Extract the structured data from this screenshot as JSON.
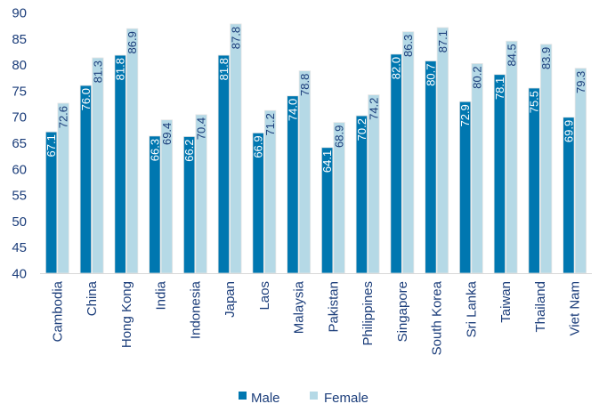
{
  "chart_data": {
    "type": "bar",
    "title": "",
    "xlabel": "",
    "ylabel": "",
    "ylim": [
      40,
      90
    ],
    "yticks": [
      40,
      45,
      50,
      55,
      60,
      65,
      70,
      75,
      80,
      85,
      90
    ],
    "grid": false,
    "legend_position": "bottom",
    "categories": [
      "Cambodia",
      "China",
      "Hong Kong",
      "India",
      "Indonesia",
      "Japan",
      "Laos",
      "Malaysia",
      "Pakistan",
      "Philippines",
      "Singapore",
      "South Korea",
      "Sri Lanka",
      "Taiwan",
      "Thailand",
      "Viet Nam"
    ],
    "series": [
      {
        "name": "Male",
        "color": "#0077b0",
        "values": [
          67.1,
          76.0,
          81.8,
          66.3,
          66.2,
          81.8,
          66.9,
          74.0,
          64.1,
          70.2,
          82.0,
          80.7,
          72.9,
          78.1,
          75.5,
          69.9
        ]
      },
      {
        "name": "Female",
        "color": "#b5d9e6",
        "values": [
          72.6,
          81.3,
          86.9,
          69.4,
          70.4,
          87.8,
          71.2,
          78.8,
          68.9,
          74.2,
          86.3,
          87.1,
          80.2,
          84.5,
          83.9,
          79.3
        ]
      }
    ],
    "text_color": "#1b3d7a"
  }
}
